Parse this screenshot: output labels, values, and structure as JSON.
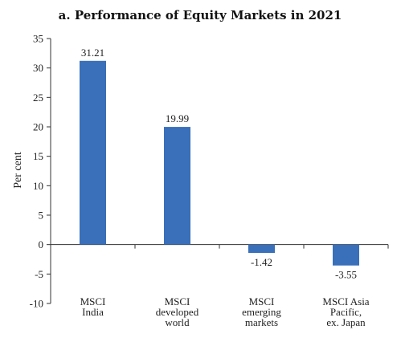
{
  "chart_data": {
    "type": "bar",
    "title": "a. Performance of Equity Markets in 2021",
    "ylabel": "Per cent",
    "xlabel": "",
    "ylim": [
      -10,
      35
    ],
    "yticks": [
      35,
      30,
      25,
      20,
      15,
      10,
      5,
      0,
      -5,
      -10
    ],
    "categories": [
      [
        "MSCI",
        "India"
      ],
      [
        "MSCI",
        "developed",
        "world"
      ],
      [
        "MSCI",
        "emerging",
        "markets"
      ],
      [
        "MSCI Asia",
        "Pacific,",
        "ex. Japan"
      ]
    ],
    "values": [
      31.21,
      19.99,
      -1.42,
      -3.55
    ],
    "value_labels": [
      "31.21",
      "19.99",
      "-1.42",
      "-3.55"
    ],
    "bar_color": "#3a6fba",
    "grid": false,
    "legend": "none"
  }
}
